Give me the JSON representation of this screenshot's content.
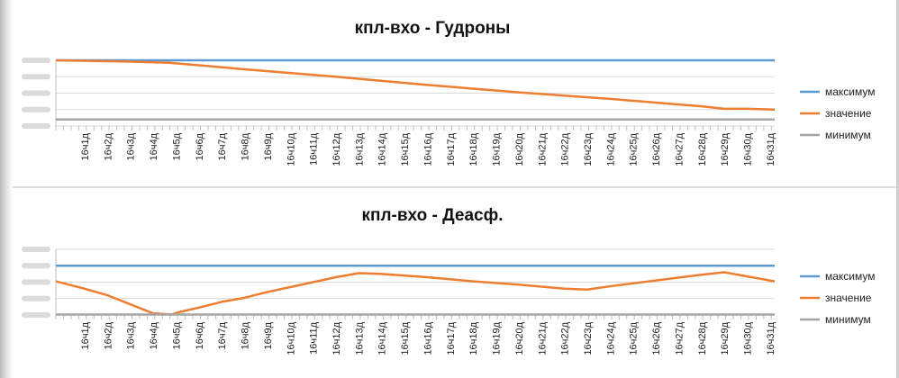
{
  "chart_data": [
    {
      "type": "line",
      "title": "кпл-вхо - Гудроны",
      "xlabel": "",
      "ylabel": "",
      "categories": [
        "16ч1д",
        "16ч2д",
        "16ч3д",
        "16ч4д",
        "16ч5д",
        "16ч6д",
        "16ч7д",
        "16ч8д",
        "16ч9д",
        "16ч10д",
        "16ч11д",
        "16ч12д",
        "16ч13д",
        "16ч14д",
        "16ч15д",
        "16ч16д",
        "16ч17д",
        "16ч18д",
        "16ч19д",
        "16ч20д",
        "16ч21д",
        "16ч22д",
        "16ч23д",
        "16ч24д",
        "16ч25д",
        "16ч26д",
        "16ч27д",
        "16ч28д",
        "16ч29д",
        "16ч30д",
        "16ч31д"
      ],
      "xlim": [
        -0.26,
        31.2
      ],
      "ylim": [
        -4,
        0
      ],
      "grid": true,
      "legend": "right",
      "series": [
        {
          "name": "максимум",
          "color": "#5b9bd5",
          "points": [
            [
              -0.26,
              0
            ],
            [
              31.2,
              0
            ]
          ]
        },
        {
          "name": "значение",
          "color": "#ed7d31",
          "points": [
            [
              -0.26,
              0
            ],
            [
              3,
              -0.08
            ],
            [
              4.7,
              -0.15
            ],
            [
              6,
              -0.3
            ],
            [
              8,
              -0.55
            ],
            [
              12,
              -1.0
            ],
            [
              16,
              -1.5
            ],
            [
              20,
              -1.95
            ],
            [
              24,
              -2.35
            ],
            [
              28,
              -2.8
            ],
            [
              29,
              -2.95
            ],
            [
              30,
              -2.95
            ],
            [
              31.2,
              -3.0
            ]
          ]
        },
        {
          "name": "минимум",
          "color": "#a5a5a5",
          "points": [
            [
              -0.26,
              -3.6
            ],
            [
              31.2,
              -3.6
            ]
          ]
        }
      ]
    },
    {
      "type": "line",
      "title": "кпл-вхо - Деасф.",
      "xlabel": "",
      "ylabel": "",
      "categories": [
        "16ч1д",
        "16ч2д",
        "16ч3д",
        "16ч4д",
        "16ч5д",
        "16ч6д",
        "16ч7д",
        "16ч8д",
        "16ч9д",
        "16ч10д",
        "16ч11д",
        "16ч12д",
        "16ч13д",
        "16ч14д",
        "16ч15д",
        "16ч16д",
        "16ч17д",
        "16ч18д",
        "16ч19д",
        "16ч20д",
        "16ч21д",
        "16ч22д",
        "16ч23д",
        "16ч24д",
        "16ч25д",
        "16ч26д",
        "16ч27д",
        "16ч28д",
        "16ч29д",
        "16ч30д",
        "16ч31д"
      ],
      "xlim": [
        -0.26,
        31.2
      ],
      "ylim": [
        0,
        4
      ],
      "grid": true,
      "legend": "right",
      "series": [
        {
          "name": "максимум",
          "color": "#5b9bd5",
          "points": [
            [
              -0.26,
              3
            ],
            [
              31.2,
              3
            ]
          ]
        },
        {
          "name": "значение",
          "color": "#ed7d31",
          "points": [
            [
              -0.26,
              2.05
            ],
            [
              1,
              1.6
            ],
            [
              2,
              1.2
            ],
            [
              3,
              0.65
            ],
            [
              4,
              0.1
            ],
            [
              4.8,
              0.03
            ],
            [
              5.2,
              0.2
            ],
            [
              6,
              0.45
            ],
            [
              7,
              0.8
            ],
            [
              8,
              1.05
            ],
            [
              9,
              1.4
            ],
            [
              10,
              1.7
            ],
            [
              11,
              2.0
            ],
            [
              12,
              2.3
            ],
            [
              13,
              2.55
            ],
            [
              14,
              2.5
            ],
            [
              16,
              2.3
            ],
            [
              18,
              2.05
            ],
            [
              20,
              1.85
            ],
            [
              22,
              1.6
            ],
            [
              23,
              1.55
            ],
            [
              24,
              1.75
            ],
            [
              26,
              2.1
            ],
            [
              28,
              2.45
            ],
            [
              29,
              2.6
            ],
            [
              30,
              2.35
            ],
            [
              31.2,
              2.05
            ]
          ]
        },
        {
          "name": "минимум",
          "color": "#a5a5a5",
          "points": [
            [
              -0.26,
              0.03
            ],
            [
              31.2,
              0.03
            ]
          ]
        }
      ]
    }
  ]
}
